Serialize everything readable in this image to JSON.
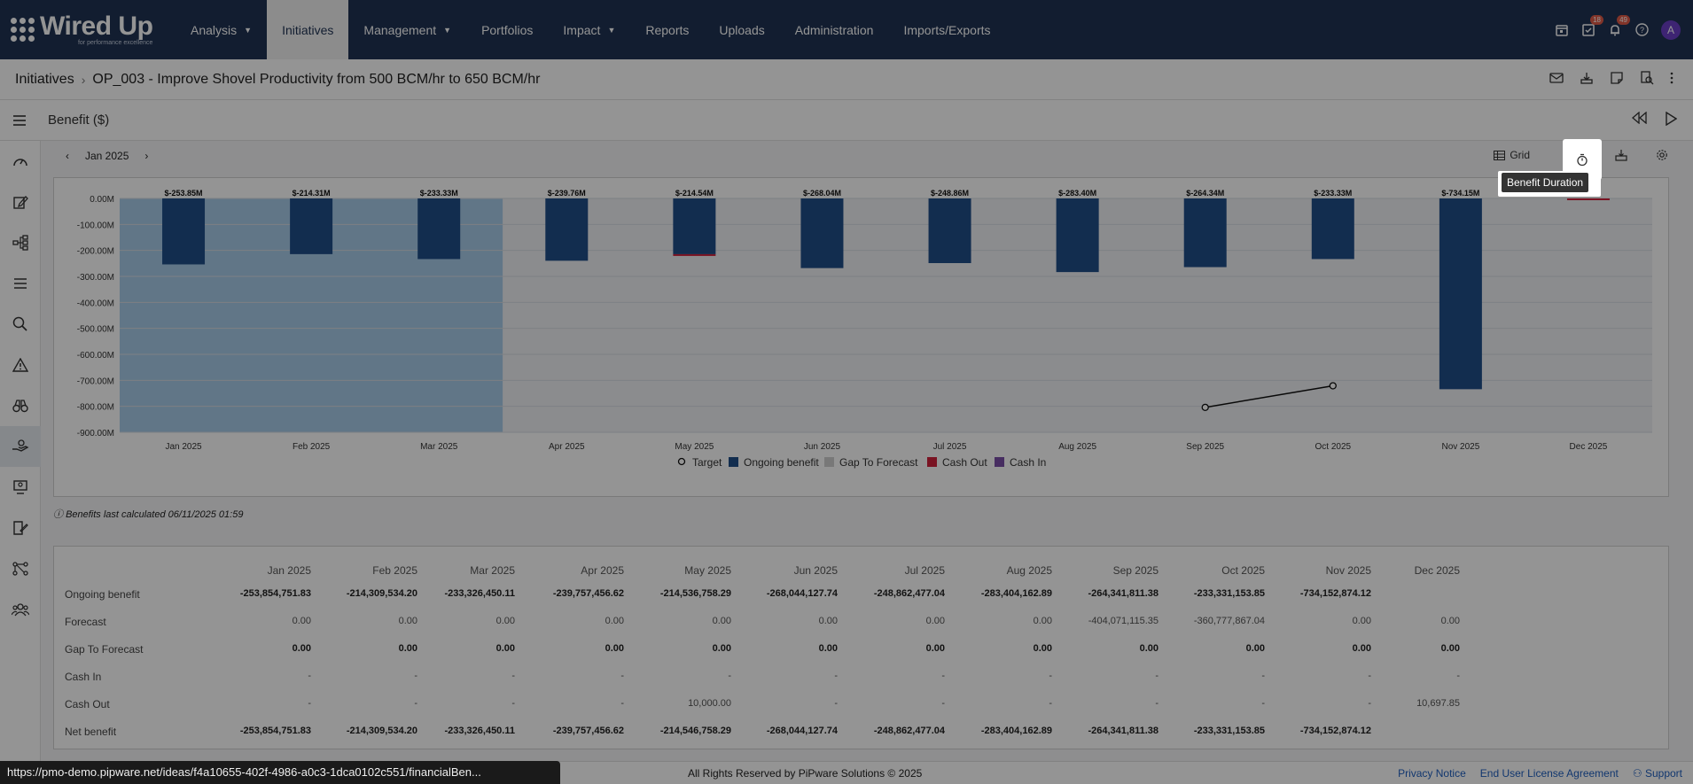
{
  "app": {
    "logo_text": "Wired Up",
    "logo_tagline": "for performance excellence"
  },
  "nav": {
    "items": [
      {
        "label": "Analysis",
        "dropdown": true
      },
      {
        "label": "Initiatives",
        "dropdown": false,
        "active": true
      },
      {
        "label": "Management",
        "dropdown": true
      },
      {
        "label": "Portfolios",
        "dropdown": false
      },
      {
        "label": "Impact",
        "dropdown": true
      },
      {
        "label": "Reports",
        "dropdown": false
      },
      {
        "label": "Uploads",
        "dropdown": false
      },
      {
        "label": "Administration",
        "dropdown": false
      },
      {
        "label": "Imports/Exports",
        "dropdown": false
      }
    ],
    "badges": {
      "tasks": "18",
      "notifications": "49"
    },
    "avatar": "A"
  },
  "breadcrumb": {
    "root": "Initiatives",
    "current": "OP_003 - Improve Shovel Productivity from 500 BCM/hr to 650 BCM/hr"
  },
  "subbar": {
    "title": "Benefit ($)"
  },
  "period": {
    "label": "Jan 2025"
  },
  "toolbar": {
    "grid_label": "Grid",
    "tooltip": "Benefit Duration"
  },
  "chart_data": {
    "type": "bar",
    "categories": [
      "Jan 2025",
      "Feb 2025",
      "Mar 2025",
      "Apr 2025",
      "May 2025",
      "Jun 2025",
      "Jul 2025",
      "Aug 2025",
      "Sep 2025",
      "Oct 2025",
      "Nov 2025",
      "Dec 2025"
    ],
    "series": [
      {
        "name": "Ongoing benefit",
        "values": [
          -253.85,
          -214.31,
          -233.33,
          -239.76,
          -214.54,
          -268.04,
          -248.86,
          -283.4,
          -264.34,
          -233.33,
          -734.15,
          0
        ]
      },
      {
        "name": "Cash Out",
        "values": [
          0,
          0,
          0,
          0,
          -0.01,
          0,
          0,
          0,
          0,
          0,
          0,
          -0.0107
        ]
      },
      {
        "name": "Target",
        "type": "line",
        "points": [
          {
            "x": "Sep 2025",
            "y": -804
          },
          {
            "x": "Oct 2025",
            "y": -721
          }
        ]
      }
    ],
    "data_labels": [
      "$-253.85M",
      "$-214.31M",
      "$-233.33M",
      "$-239.76M",
      "$-214.54M",
      "$-268.04M",
      "$-248.86M",
      "$-283.40M",
      "$-264.34M",
      "$-233.33M",
      "$-734.15M"
    ],
    "y_ticks": [
      "0.00M",
      "-100.00M",
      "-200.00M",
      "-300.00M",
      "-400.00M",
      "-500.00M",
      "-600.00M",
      "-700.00M",
      "-800.00M",
      "-900.00M"
    ],
    "ylim": [
      -900,
      0
    ],
    "legend": [
      "Target",
      "Ongoing benefit",
      "Gap To Forecast",
      "Cash Out",
      "Cash In"
    ],
    "legend_position": "bottom",
    "colors": {
      "ongoing": "#1f4e89",
      "cash_out": "#d0213c",
      "cash_in": "#7a4fa8",
      "gap": "#cfcfcf",
      "actual_shade": "#a8cbe8"
    }
  },
  "calc_note": "Benefits last calculated 06/11/2025 01:59",
  "table": {
    "months": [
      "Jan 2025",
      "Feb 2025",
      "Mar 2025",
      "Apr 2025",
      "May 2025",
      "Jun 2025",
      "Jul 2025",
      "Aug 2025",
      "Sep 2025",
      "Oct 2025",
      "Nov 2025",
      "Dec 2025"
    ],
    "rows": [
      {
        "label": "Ongoing benefit",
        "bold": true,
        "values": [
          "-253,854,751.83",
          "-214,309,534.20",
          "-233,326,450.11",
          "-239,757,456.62",
          "-214,536,758.29",
          "-268,044,127.74",
          "-248,862,477.04",
          "-283,404,162.89",
          "-264,341,811.38",
          "-233,331,153.85",
          "-734,152,874.12",
          ""
        ]
      },
      {
        "label": "Forecast",
        "bold": false,
        "values": [
          "0.00",
          "0.00",
          "0.00",
          "0.00",
          "0.00",
          "0.00",
          "0.00",
          "0.00",
          "-404,071,115.35",
          "-360,777,867.04",
          "0.00",
          "0.00"
        ]
      },
      {
        "label": "Gap To Forecast",
        "bold": true,
        "values": [
          "0.00",
          "0.00",
          "0.00",
          "0.00",
          "0.00",
          "0.00",
          "0.00",
          "0.00",
          "0.00",
          "0.00",
          "0.00",
          "0.00"
        ]
      },
      {
        "label": "Cash In",
        "bold": false,
        "values": [
          "-",
          "-",
          "-",
          "-",
          "-",
          "-",
          "-",
          "-",
          "-",
          "-",
          "-",
          "-"
        ]
      },
      {
        "label": "Cash Out",
        "bold": false,
        "values": [
          "-",
          "-",
          "-",
          "-",
          "10,000.00",
          "-",
          "-",
          "-",
          "-",
          "-",
          "-",
          "10,697.85"
        ]
      },
      {
        "label": "Net benefit",
        "bold": true,
        "values": [
          "-253,854,751.83",
          "-214,309,534.20",
          "-233,326,450.11",
          "-239,757,456.62",
          "-214,546,758.29",
          "-268,044,127.74",
          "-248,862,477.04",
          "-283,404,162.89",
          "-264,341,811.38",
          "-233,331,153.85",
          "-734,152,874.12",
          ""
        ]
      }
    ]
  },
  "footer": {
    "copyright": "All Rights Reserved by PiPware Solutions © 2025",
    "links": [
      "Privacy Notice",
      "End User License Agreement",
      "Support"
    ],
    "status_url": "https://pmo-demo.pipware.net/ideas/f4a10655-402f-4986-a0c3-1dca0102c551/financialBen..."
  }
}
